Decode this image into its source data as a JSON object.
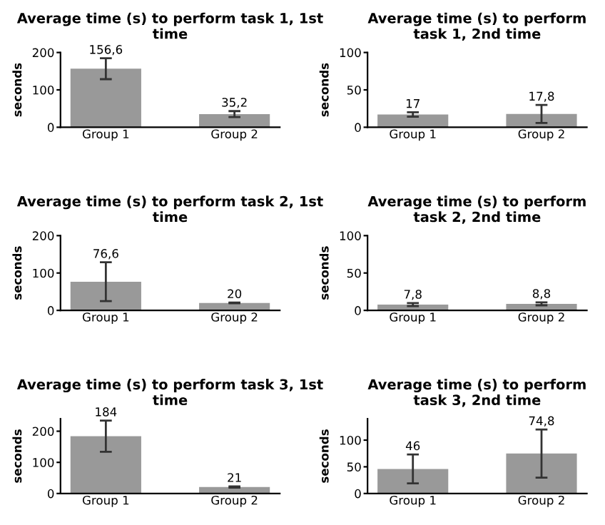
{
  "chart_data": [
    {
      "type": "bar",
      "title": "Average time (s) to perform task 1, 1st time",
      "ylabel": "seconds",
      "categories": [
        "Group 1",
        "Group 2"
      ],
      "values": [
        156.6,
        35.2
      ],
      "value_labels": [
        "156,6",
        "35,2"
      ],
      "errors": [
        28,
        8
      ],
      "color": "#999999",
      "ylim": [
        0,
        200
      ],
      "yticks": [
        0,
        100,
        200
      ],
      "grid": false
    },
    {
      "type": "bar",
      "title": "Average time (s) to perform task 1, 2nd time",
      "ylabel": "seconds",
      "categories": [
        "Group 1",
        "Group 2"
      ],
      "values": [
        17,
        17.8
      ],
      "value_labels": [
        "17",
        "17,8"
      ],
      "errors": [
        3,
        12
      ],
      "color": "#999999",
      "ylim": [
        0,
        100
      ],
      "yticks": [
        0,
        50,
        100
      ],
      "grid": false
    },
    {
      "type": "bar",
      "title": "Average time (s) to perform task 2, 1st time",
      "ylabel": "seconds",
      "categories": [
        "Group 1",
        "Group 2"
      ],
      "values": [
        76.6,
        20
      ],
      "value_labels": [
        "76,6",
        "20"
      ],
      "errors": [
        52,
        1
      ],
      "color": "#999999",
      "ylim": [
        0,
        200
      ],
      "yticks": [
        0,
        100,
        200
      ],
      "grid": false
    },
    {
      "type": "bar",
      "title": "Average time (s) to perform task 2, 2nd time",
      "ylabel": "seconds",
      "categories": [
        "Group 1",
        "Group 2"
      ],
      "values": [
        7.8,
        8.8
      ],
      "value_labels": [
        "7,8",
        "8,8"
      ],
      "errors": [
        2,
        2
      ],
      "color": "#999999",
      "ylim": [
        0,
        100
      ],
      "yticks": [
        0,
        50,
        100
      ],
      "grid": false
    },
    {
      "type": "bar",
      "title": "Average time (s) to perform task 3, 1st time",
      "ylabel": "seconds",
      "categories": [
        "Group 1",
        "Group 2"
      ],
      "values": [
        184,
        21
      ],
      "value_labels": [
        "184",
        "21"
      ],
      "errors": [
        50,
        2
      ],
      "color": "#999999",
      "ylim": [
        0,
        240
      ],
      "yticks": [
        0,
        100,
        200
      ],
      "grid": false
    },
    {
      "type": "bar",
      "title": "Average time (s) to perform task 3, 2nd time",
      "ylabel": "seconds",
      "categories": [
        "Group 1",
        "Group 2"
      ],
      "values": [
        46,
        74.8
      ],
      "value_labels": [
        "46",
        "74,8"
      ],
      "errors": [
        27,
        45
      ],
      "color": "#999999",
      "ylim": [
        0,
        140
      ],
      "yticks": [
        0,
        50,
        100
      ],
      "grid": false
    }
  ]
}
